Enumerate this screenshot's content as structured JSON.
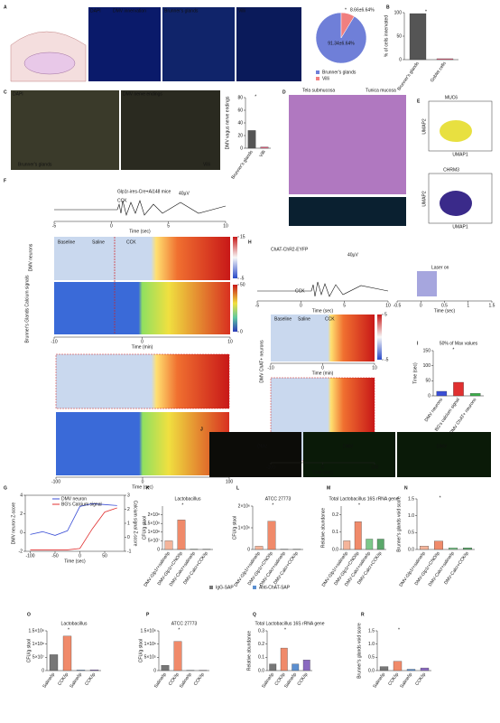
{
  "letters": [
    "A",
    "B",
    "C",
    "D",
    "E",
    "F",
    "G",
    "H",
    "I",
    "J",
    "K",
    "L",
    "M",
    "N",
    "O",
    "P",
    "Q",
    "R"
  ],
  "image_labels": [
    "DAPI",
    "DMV innervation",
    "Brunner's glands",
    "Villi",
    "DAPI",
    "DMV nerve endings",
    "Brunner's glands",
    "Villi",
    "Tela submucosa",
    "Tunica mucosa",
    "Glp1r-ires-Cre+Ai148 mice",
    "CCK",
    "40µV",
    "Baseline",
    "Saline",
    "CCK",
    "DMV neurons",
    "Brunner's Glands Calcium signals",
    "ChAT-ChR2-EYFP",
    "CCK",
    "40µV",
    "Laser on",
    "Baseline",
    "Saline",
    "CCK",
    "DMV ChAT+ neurons",
    "DMV",
    "DMV",
    "DMV",
    "MUC6",
    "CHRM3",
    "UMAP1",
    "UMAP2",
    "UMAP1",
    "UMAP2"
  ],
  "pie": {
    "values": [
      91.34,
      8.66
    ],
    "value_labels": [
      "91.34±6.64%",
      "8.66±6.64%"
    ],
    "legend": [
      "Brunner's glands",
      "Villi"
    ],
    "colors": [
      "#6f7fd8",
      "#f07f7f"
    ],
    "star": "*"
  },
  "time_axes": [
    {
      "label": "Time (sec)",
      "lim": [
        -5,
        10
      ],
      "ticks": [
        -5,
        0,
        5,
        10
      ]
    },
    {
      "label": "Time (min)",
      "lim": [
        -10,
        10
      ],
      "ticks": [
        -10,
        0,
        10
      ]
    },
    {
      "label": "Time (sec)",
      "lim": [
        -100,
        100
      ],
      "ticks": [
        -100,
        0,
        100
      ]
    },
    {
      "label": "Time (sec)",
      "lim": [
        -5,
        10
      ],
      "ticks": [
        -5,
        0,
        5,
        10
      ]
    },
    {
      "label": "Time (sec)",
      "lim": [
        -0.5,
        1.5
      ],
      "ticks": [
        -0.5,
        0,
        0.5,
        1,
        1.5
      ]
    },
    {
      "label": "Time (min)",
      "lim": [
        -10,
        10
      ],
      "ticks": [
        -10,
        0,
        10
      ]
    },
    {
      "label": "Time (sec)",
      "lim": [
        -100,
        100
      ],
      "ticks": [
        -100,
        0,
        100
      ]
    }
  ],
  "colorbars": [
    {
      "lim": [
        -5,
        15
      ],
      "ticks": [
        15,
        -5
      ]
    },
    {
      "lim": [
        0,
        50
      ],
      "ticks": [
        50,
        0
      ]
    },
    {
      "lim": [
        -5,
        5
      ],
      "ticks": [
        5,
        -5
      ]
    }
  ],
  "line_chart": {
    "type": "line",
    "ylabel": "DMV neuron Z-score",
    "y2label": "Calcium signal Z-score",
    "xlabel": "Time (sec)",
    "x": [
      -100,
      -75,
      -50,
      -25,
      0,
      25,
      50,
      75
    ],
    "xlim": [
      -110,
      90
    ],
    "xticks": [
      -100,
      -50,
      0,
      50
    ],
    "ylim": [
      -2,
      4
    ],
    "yticks": [
      -2,
      0,
      2,
      4
    ],
    "y2lim": [
      -1,
      3
    ],
    "y2ticks": [
      -1,
      0,
      1,
      2,
      3
    ],
    "series": [
      {
        "name": "DMV neuron",
        "color": "#3b4fd6",
        "values": [
          -0.2,
          0.1,
          -0.3,
          0.2,
          2.8,
          3.1,
          3.0,
          2.9
        ]
      },
      {
        "name": "BG's Calcium signal",
        "color": "#e03030",
        "axis": "y2",
        "values": [
          -0.9,
          -0.9,
          -0.9,
          -0.9,
          -0.8,
          0.6,
          1.8,
          2.1
        ]
      }
    ]
  },
  "legend_sap": [
    "IgG-SAP",
    "Anti-ChAT-SAP"
  ],
  "bar_charts": [
    {
      "type": "bar",
      "ylabel": "% of cells innervated",
      "categories": [
        "Brunner's glands",
        "Goblet cells"
      ],
      "values": [
        98,
        2
      ],
      "colors": [
        "#555555",
        "#e0607e"
      ],
      "ylim": [
        0,
        100
      ],
      "yticks": [
        0,
        50,
        100
      ],
      "star": "*"
    },
    {
      "type": "bar",
      "ylabel": "DMV vagus nerve endings",
      "categories": [
        "Brunner's glands",
        "Villi"
      ],
      "values": [
        28,
        2
      ],
      "colors": [
        "#555555",
        "#e0607e"
      ],
      "ylim": [
        0,
        80
      ],
      "yticks": [
        0,
        20,
        40,
        60,
        80
      ],
      "star": "*"
    },
    {
      "type": "bar",
      "title": "50% of Max values",
      "ylabel": "Time (sec)",
      "categories": [
        "DMV neurons",
        "BG's calcium signal",
        "DMV ChAT+ neurons"
      ],
      "values": [
        15,
        45,
        8
      ],
      "colors": [
        "#3b4fd6",
        "#e03030",
        "#3bb04a"
      ],
      "ylim": [
        0,
        150
      ],
      "yticks": [
        0,
        50,
        100,
        150
      ],
      "star": "*"
    },
    {
      "type": "bar",
      "title": "Lactobacillus",
      "ylabel": "CFU/g stool",
      "categories": [
        "DMV-Glp1r+saline/ip",
        "DMV-Glp1r+CNO/ip",
        "DMV-Calcr+saline/ip",
        "DMV-Calcr+CCK/ip"
      ],
      "values": [
        50000000,
        170000000,
        2000000,
        1000000
      ],
      "colors": [
        "#f4b49a",
        "#f08a6a",
        "#7cc88a",
        "#5aa86a"
      ],
      "ylim": [
        0,
        250000000
      ],
      "yticks": [
        0,
        {
          "value": 50000000,
          "label": "5×10⁷"
        },
        {
          "value": 100000000,
          "label": "1×10⁸"
        },
        {
          "value": 150000000,
          "label": "1.5×10⁸"
        },
        {
          "value": 200000000,
          "label": "2×10⁸"
        }
      ],
      "star": "*"
    },
    {
      "type": "bar",
      "title": "ATCC 27773",
      "ylabel": "CFU/g stool",
      "categories": [
        "DMV-Glp1r+saline/ip",
        "DMV-Glp1r+CNO/ip",
        "DMV-Calcr+saline/ip",
        "DMV-Calcr+CCK/ip"
      ],
      "values": [
        150000,
        1300000,
        10000,
        10000
      ],
      "colors": [
        "#f4b49a",
        "#f08a6a",
        "#7cc88a",
        "#5aa86a"
      ],
      "ylim": [
        0,
        2000000
      ],
      "yticks": [
        0,
        {
          "value": 1000000,
          "label": "1×10⁶"
        },
        {
          "value": 2000000,
          "label": "2×10⁶"
        }
      ],
      "star": "*"
    },
    {
      "type": "bar",
      "title": "Total Lactobacillus 16S rRNA gene",
      "ylabel": "Relative abundance",
      "categories": [
        "DMV-Glp1r+saline/ip",
        "DMV-Glp1r+CNO/ip",
        "DMV-Calcr+saline/ip",
        "DMV-Calcr+CCK/ip"
      ],
      "values": [
        0.05,
        0.16,
        0.06,
        0.06
      ],
      "colors": [
        "#f4b49a",
        "#f08a6a",
        "#7cc88a",
        "#5aa86a"
      ],
      "ylim": [
        0,
        0.25
      ],
      "yticks": [
        {
          "value": 0,
          "label": "0.0"
        },
        0.1,
        0.2
      ],
      "star": "*"
    },
    {
      "type": "bar",
      "ylabel": "Brunner's glands void score",
      "categories": [
        "DMV-Glp1r+saline/ip",
        "DMV-Glp1r+CNO/ip",
        "DMV-Calcr+saline/ip",
        "DMV-Calcr+CCK/ip"
      ],
      "values": [
        0.1,
        0.25,
        0.05,
        0.05
      ],
      "colors": [
        "#f4b49a",
        "#f08a6a",
        "#7cc88a",
        "#5aa86a"
      ],
      "ylim": [
        0,
        1.5
      ],
      "yticks": [
        {
          "value": 0,
          "label": "0.0"
        },
        0.5,
        {
          "value": 1,
          "label": "1.0"
        },
        1.5
      ],
      "star": "*"
    },
    {
      "type": "bar",
      "title": "Lactobacillus",
      "ylabel": "CFU/g stool",
      "categories": [
        "Saline/ip",
        "CCK/ip",
        "Saline/ip",
        "CCK/ip"
      ],
      "values": [
        60000000,
        130000000,
        2000000,
        3000000
      ],
      "colors": [
        "#777777",
        "#f08a6a",
        "#5b8fd0",
        "#8a6ac0"
      ],
      "ylim": [
        0,
        150000000
      ],
      "yticks": [
        0,
        {
          "value": 50000000,
          "label": "5×10⁷"
        },
        {
          "value": 100000000,
          "label": "1×10⁸"
        },
        {
          "value": 150000000,
          "label": "1.5×10⁸"
        }
      ],
      "star": "*"
    },
    {
      "type": "bar",
      "title": "ATCC 27773",
      "ylabel": "CFU/g stool",
      "categories": [
        "Saline/ip",
        "CCK/ip",
        "Saline/ip",
        "CCK/ip"
      ],
      "values": [
        200000,
        1100000,
        10000,
        10000
      ],
      "colors": [
        "#777777",
        "#f08a6a",
        "#5b8fd0",
        "#8a6ac0"
      ],
      "ylim": [
        0,
        1500000
      ],
      "yticks": [
        0,
        {
          "value": 500000,
          "label": "5×10⁵"
        },
        {
          "value": 1000000,
          "label": "1×10⁶"
        },
        {
          "value": 1500000,
          "label": "1.5×10⁶"
        }
      ],
      "star": "*"
    },
    {
      "type": "bar",
      "title": "Total Lactobacillus 16S rRNA gene",
      "ylabel": "Relative abundance",
      "categories": [
        "Saline/ip",
        "CCK/ip",
        "Saline/ip",
        "CCK/ip"
      ],
      "values": [
        0.05,
        0.17,
        0.05,
        0.08
      ],
      "colors": [
        "#777777",
        "#f08a6a",
        "#5b8fd0",
        "#8a6ac0"
      ],
      "ylim": [
        0,
        0.3
      ],
      "yticks": [
        {
          "value": 0,
          "label": "0.0"
        },
        0.1,
        0.2,
        0.3
      ],
      "star": "*"
    },
    {
      "type": "bar",
      "ylabel": "Brunner's glands void score",
      "categories": [
        "Saline/ip",
        "CCK/ip",
        "Saline/ip",
        "CCK/ip"
      ],
      "values": [
        0.15,
        0.35,
        0.05,
        0.1
      ],
      "colors": [
        "#777777",
        "#f08a6a",
        "#5b8fd0",
        "#8a6ac0"
      ],
      "ylim": [
        0,
        1.5
      ],
      "yticks": [
        {
          "value": 0,
          "label": "0.0"
        },
        0.5,
        {
          "value": 1,
          "label": "1.0"
        },
        1.5
      ],
      "star": "*"
    }
  ]
}
